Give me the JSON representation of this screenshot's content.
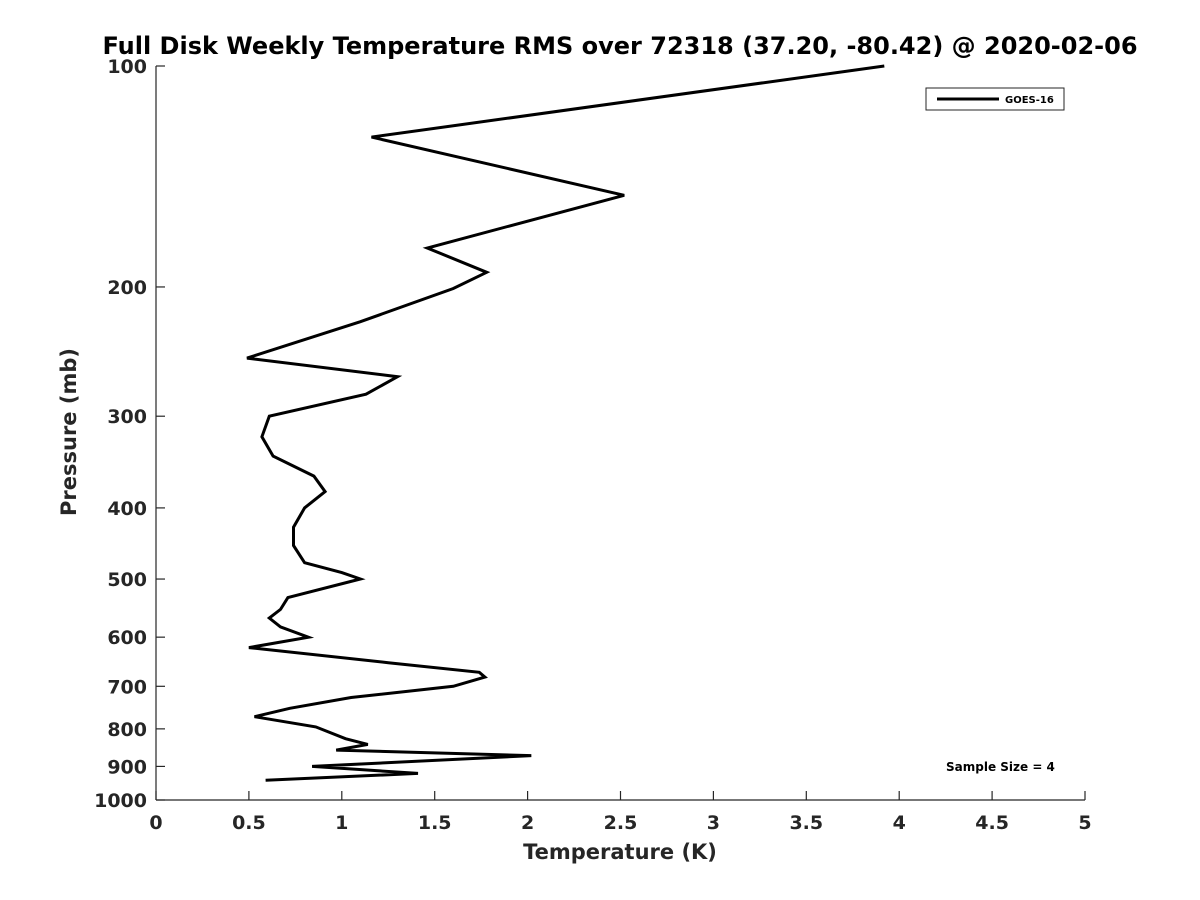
{
  "chart_data": {
    "type": "line",
    "title": "Full Disk Weekly Temperature RMS over 72318 (37.20, -80.42) @ 2020-02-06",
    "xlabel": "Temperature (K)",
    "ylabel": "Pressure (mb)",
    "xlim": [
      0,
      5
    ],
    "ylim": [
      100,
      1000
    ],
    "y_scale": "log",
    "y_reversed": true,
    "x_ticks": [
      "0",
      "0.5",
      "1",
      "1.5",
      "2",
      "2.5",
      "3",
      "3.5",
      "4",
      "4.5",
      "5"
    ],
    "y_ticks": [
      "100",
      "200",
      "300",
      "400",
      "500",
      "600",
      "700",
      "800",
      "900",
      "1000"
    ],
    "grid": false,
    "legend_position": "top-right",
    "annotation": "Sample Size = 4",
    "series": [
      {
        "name": "GOES-16",
        "color": "#000000",
        "points": [
          [
            3.92,
            100
          ],
          [
            1.16,
            125
          ],
          [
            2.52,
            150
          ],
          [
            1.46,
            177
          ],
          [
            1.78,
            191
          ],
          [
            1.6,
            201
          ],
          [
            1.1,
            223
          ],
          [
            0.49,
            250
          ],
          [
            1.3,
            265
          ],
          [
            1.13,
            280
          ],
          [
            0.61,
            300
          ],
          [
            0.57,
            320
          ],
          [
            0.63,
            340
          ],
          [
            0.85,
            362
          ],
          [
            0.91,
            380
          ],
          [
            0.8,
            400
          ],
          [
            0.74,
            425
          ],
          [
            0.74,
            450
          ],
          [
            0.8,
            475
          ],
          [
            1.0,
            490
          ],
          [
            1.1,
            500
          ],
          [
            0.71,
            530
          ],
          [
            0.67,
            550
          ],
          [
            0.61,
            565
          ],
          [
            0.67,
            581
          ],
          [
            0.82,
            600
          ],
          [
            0.5,
            620
          ],
          [
            1.25,
            650
          ],
          [
            1.74,
            670
          ],
          [
            1.77,
            680
          ],
          [
            1.6,
            700
          ],
          [
            1.05,
            725
          ],
          [
            0.72,
            750
          ],
          [
            0.53,
            770
          ],
          [
            0.86,
            795
          ],
          [
            1.02,
            825
          ],
          [
            1.14,
            840
          ],
          [
            0.97,
            855
          ],
          [
            2.02,
            870
          ],
          [
            0.84,
            900
          ],
          [
            1.41,
            920
          ],
          [
            0.59,
            940
          ]
        ]
      }
    ]
  }
}
